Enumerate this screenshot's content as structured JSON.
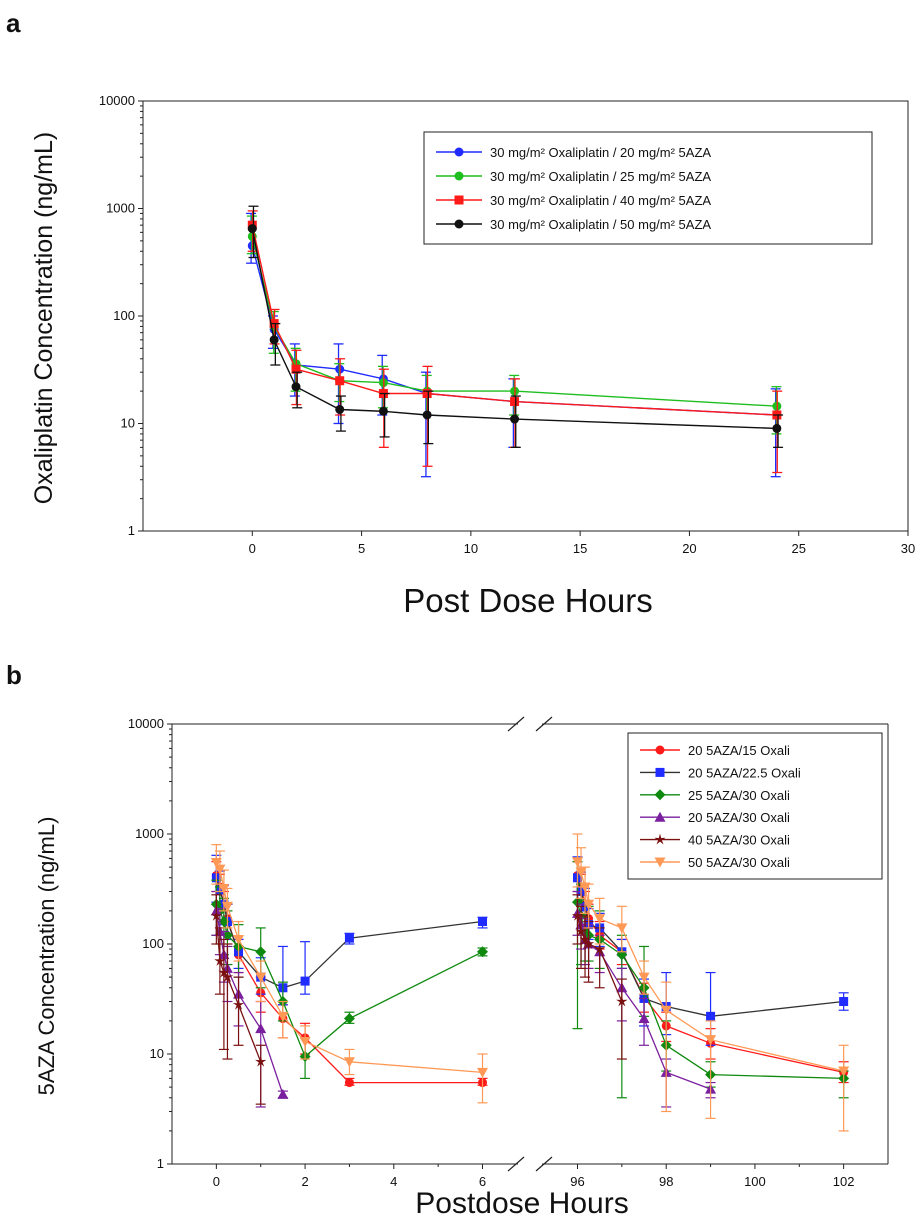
{
  "panel_a_label": "a",
  "panel_b_label": "b",
  "colors": {
    "blue": "#1f2bff",
    "green": "#1fbe1f",
    "red": "#ff1a1a",
    "black": "#111111",
    "dark_green": "#0f8a0f",
    "purple": "#7a1f9e",
    "dark_red": "#7a1010",
    "orange": "#ff9955"
  },
  "chart_data": [
    {
      "type": "line",
      "panel": "a",
      "xlabel": "Post Dose Hours",
      "ylabel": "Oxaliplatin Concentration (ng/mL)",
      "y_scale": "log",
      "xlim": [
        -5,
        30
      ],
      "ylim": [
        1,
        10000
      ],
      "x_ticks": [
        0,
        5,
        10,
        15,
        20,
        25,
        30
      ],
      "y_ticks": [
        1,
        10,
        100,
        1000,
        10000
      ],
      "legend_position": "top-right",
      "series": [
        {
          "name": "30 mg/m² Oxaliplatin / 20 mg/m² 5AZA",
          "color": "#1f2bff",
          "marker": "circle",
          "x": [
            0,
            1,
            2,
            4,
            6,
            8,
            12,
            24
          ],
          "y": [
            450,
            75,
            35,
            32,
            26,
            19,
            16,
            12
          ],
          "err_low": [
            310,
            50,
            18,
            10,
            12,
            3.2,
            6,
            3.2
          ],
          "err_high": [
            900,
            100,
            55,
            55,
            43,
            30,
            26,
            21
          ]
        },
        {
          "name": "30 mg/m² Oxaliplatin / 25 mg/m² 5AZA",
          "color": "#1fbe1f",
          "marker": "circle",
          "x": [
            0,
            1,
            2,
            4,
            6,
            8,
            12,
            24
          ],
          "y": [
            550,
            80,
            36,
            25,
            24,
            20,
            20,
            14.5
          ],
          "err_low": [
            380,
            45,
            20,
            16,
            14,
            12,
            12,
            8
          ],
          "err_high": [
            850,
            110,
            50,
            36,
            34,
            28,
            28,
            22
          ]
        },
        {
          "name": "30 mg/m² Oxaliplatin / 40 mg/m² 5AZA",
          "color": "#ff1a1a",
          "marker": "square",
          "x": [
            0,
            1,
            2,
            4,
            6,
            8,
            12,
            24
          ],
          "y": [
            700,
            85,
            32,
            25,
            19,
            19,
            16,
            12
          ],
          "err_low": [
            400,
            55,
            15,
            12,
            6,
            4,
            6,
            3.5
          ],
          "err_high": [
            950,
            115,
            48,
            40,
            32,
            34,
            26,
            20
          ]
        },
        {
          "name": "30 mg/m² Oxaliplatin / 50 mg/m² 5AZA",
          "color": "#111111",
          "marker": "circle",
          "x": [
            0,
            1,
            2,
            4,
            6,
            8,
            12,
            24
          ],
          "y": [
            650,
            60,
            22,
            13.5,
            13,
            12,
            11,
            9
          ],
          "err_low": [
            350,
            35,
            14,
            8.5,
            7.5,
            6.5,
            6,
            6
          ],
          "err_high": [
            1050,
            85,
            30,
            18,
            19,
            20,
            18,
            12
          ]
        }
      ]
    },
    {
      "type": "line",
      "panel": "b",
      "xlabel": "Postdose Hours",
      "ylabel": "5AZA Concentration (ng/mL)",
      "y_scale": "log",
      "ylim": [
        1,
        10000
      ],
      "x_break": true,
      "x_segments": [
        {
          "range": [
            -1,
            6.8
          ],
          "ticks": [
            0,
            2,
            4,
            6
          ]
        },
        {
          "range": [
            95.2,
            103
          ],
          "ticks": [
            96,
            98,
            100,
            102
          ]
        }
      ],
      "y_ticks": [
        1,
        10,
        100,
        1000,
        10000
      ],
      "legend_position": "top-right",
      "series": [
        {
          "name": "20 5AZA/15 Oxali",
          "color": "#ff1a1a",
          "marker": "circle",
          "x": [
            0,
            0.08,
            0.17,
            0.25,
            0.5,
            1,
            1.5,
            2,
            3,
            6,
            96,
            96.08,
            96.17,
            96.25,
            96.5,
            97,
            97.5,
            98,
            99,
            102
          ],
          "y": [
            420,
            330,
            230,
            170,
            80,
            36,
            21,
            14,
            5.5,
            5.5,
            420,
            330,
            230,
            170,
            120,
            85,
            33,
            18,
            12.5,
            6.8
          ],
          "err_low": [
            300,
            240,
            160,
            120,
            55,
            24,
            14,
            10,
            5.2,
            5.2,
            300,
            240,
            160,
            120,
            90,
            65,
            24,
            13,
            9,
            5.5
          ],
          "err_high": [
            560,
            430,
            300,
            230,
            110,
            50,
            28,
            19,
            6,
            6,
            560,
            430,
            300,
            230,
            160,
            110,
            44,
            24,
            17,
            8.5
          ]
        },
        {
          "name": "20 5AZA/22.5 Oxali",
          "color": "#1f2bff",
          "marker": "square",
          "x": [
            0,
            0.08,
            0.17,
            0.25,
            0.5,
            1,
            1.5,
            2,
            3,
            6,
            96,
            96.08,
            96.17,
            96.25,
            96.5,
            97,
            97.5,
            98,
            99,
            102
          ],
          "y": [
            400,
            310,
            230,
            160,
            85,
            50,
            40,
            46,
            113,
            160,
            400,
            300,
            220,
            150,
            140,
            85,
            32,
            27,
            22,
            30
          ],
          "err_low": [
            240,
            200,
            150,
            110,
            60,
            35,
            28,
            35,
            100,
            140,
            240,
            200,
            150,
            110,
            95,
            60,
            18,
            15,
            12,
            25
          ],
          "err_high": [
            640,
            460,
            340,
            230,
            110,
            75,
            95,
            105,
            125,
            175,
            620,
            450,
            320,
            210,
            190,
            110,
            48,
            55,
            55,
            36
          ]
        },
        {
          "name": "25 5AZA/30 Oxali",
          "color": "#0f8a0f",
          "marker": "diamond",
          "x": [
            0,
            0.08,
            0.17,
            0.25,
            0.5,
            1,
            1.5,
            2,
            3,
            6,
            96,
            96.08,
            96.17,
            96.25,
            96.5,
            97,
            97.5,
            98,
            99,
            102
          ],
          "y": [
            230,
            200,
            160,
            120,
            95,
            85,
            30,
            9.5,
            21,
            85,
            240,
            180,
            130,
            120,
            110,
            80,
            40,
            12,
            6.5,
            6
          ],
          "err_low": [
            120,
            100,
            80,
            65,
            50,
            40,
            20,
            6,
            19,
            78,
            17,
            65,
            70,
            70,
            60,
            4,
            22,
            7,
            5,
            4
          ],
          "err_high": [
            380,
            330,
            260,
            200,
            150,
            140,
            45,
            14,
            24,
            92,
            560,
            350,
            250,
            220,
            200,
            120,
            95,
            20,
            8.5,
            7
          ]
        },
        {
          "name": "20 5AZA/30 Oxali",
          "color": "#7a1f9e",
          "marker": "triangle",
          "x": [
            0,
            0.08,
            0.17,
            0.25,
            0.5,
            1,
            1.5,
            96,
            96.08,
            96.17,
            96.25,
            96.5,
            97,
            97.5,
            98,
            99
          ],
          "y": [
            200,
            130,
            80,
            60,
            35,
            17,
            4.3,
            190,
            150,
            110,
            100,
            85,
            40,
            21,
            6.8,
            4.8
          ],
          "err_low": [
            120,
            80,
            45,
            30,
            18,
            3.3,
            4,
            120,
            90,
            65,
            60,
            55,
            20,
            12,
            3.3,
            4
          ],
          "err_high": [
            300,
            210,
            130,
            95,
            55,
            30,
            4.6,
            300,
            230,
            170,
            150,
            120,
            60,
            32,
            9,
            5.5
          ]
        },
        {
          "name": "40 5AZA/30 Oxali",
          "color": "#7a1010",
          "marker": "star",
          "x": [
            0,
            0.08,
            0.17,
            0.25,
            0.5,
            1,
            96,
            96.08,
            96.17,
            96.25,
            96.5,
            97
          ],
          "y": [
            180,
            70,
            55,
            50,
            28,
            8.5,
            180,
            130,
            110,
            100,
            90,
            30
          ],
          "err_low": [
            100,
            35,
            11,
            9,
            12,
            3.5,
            100,
            60,
            50,
            45,
            40,
            9
          ],
          "err_high": [
            280,
            140,
            110,
            100,
            50,
            12,
            280,
            220,
            180,
            160,
            140,
            48
          ]
        },
        {
          "name": "50 5AZA/30 Oxali",
          "color": "#ff9955",
          "marker": "triangle-down",
          "x": [
            0,
            0.08,
            0.17,
            0.25,
            0.5,
            1,
            1.5,
            2,
            3,
            6,
            96,
            96.08,
            96.17,
            96.25,
            96.5,
            97,
            97.5,
            98,
            99,
            102
          ],
          "y": [
            550,
            480,
            320,
            220,
            110,
            50,
            22,
            13,
            8.5,
            6.8,
            560,
            450,
            330,
            230,
            170,
            140,
            50,
            25,
            13.5,
            7
          ],
          "err_low": [
            350,
            300,
            200,
            140,
            70,
            30,
            14,
            9,
            6.5,
            3.6,
            330,
            260,
            190,
            140,
            100,
            85,
            35,
            3,
            2.6,
            2
          ],
          "err_high": [
            800,
            700,
            470,
            320,
            160,
            70,
            30,
            18,
            11,
            10,
            1000,
            750,
            500,
            350,
            260,
            220,
            70,
            45,
            20,
            12
          ]
        }
      ]
    }
  ]
}
